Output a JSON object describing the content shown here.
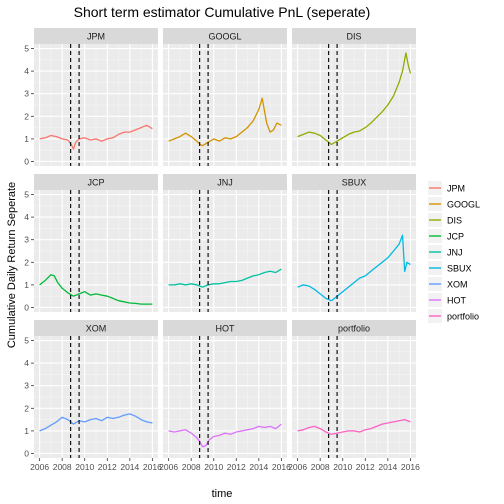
{
  "chart_data": {
    "type": "line",
    "title": "Short term estimator Cumulative PnL (seperate)",
    "xlabel": "time",
    "ylabel": "Cumulative Daily Return Seperate",
    "xlim": [
      2005.5,
      2016.5
    ],
    "ylim": [
      -0.2,
      5.2
    ],
    "x_ticks": [
      "2006",
      "2008",
      "2010",
      "2012",
      "2014",
      "2016"
    ],
    "y_ticks": [
      "0",
      "1",
      "2",
      "3",
      "4",
      "5"
    ],
    "vlines": [
      2008.75,
      2009.5
    ],
    "grid": true,
    "legend_position": "right",
    "series": [
      {
        "name": "JPM",
        "color": "#F8766D",
        "x": [
          2006,
          2006.5,
          2007,
          2007.5,
          2008,
          2008.5,
          2008.8,
          2009,
          2009.2,
          2009.5,
          2010,
          2010.5,
          2011,
          2011.5,
          2012,
          2012.5,
          2013,
          2013.5,
          2014,
          2014.5,
          2015,
          2015.5,
          2016
        ],
        "y": [
          1.0,
          1.05,
          1.15,
          1.1,
          1.0,
          0.95,
          0.75,
          0.55,
          0.85,
          1.0,
          1.05,
          0.95,
          1.0,
          0.9,
          1.0,
          1.05,
          1.2,
          1.3,
          1.3,
          1.4,
          1.5,
          1.6,
          1.45
        ]
      },
      {
        "name": "GOOGL",
        "color": "#D39200",
        "x": [
          2006,
          2006.5,
          2007,
          2007.5,
          2008,
          2008.5,
          2008.8,
          2009,
          2009.5,
          2010,
          2010.5,
          2011,
          2011.5,
          2012,
          2012.5,
          2013,
          2013.5,
          2014,
          2014.3,
          2014.7,
          2015,
          2015.3,
          2015.6,
          2016
        ],
        "y": [
          0.9,
          1.0,
          1.1,
          1.25,
          1.1,
          0.9,
          0.75,
          0.7,
          0.85,
          1.0,
          0.9,
          1.05,
          1.0,
          1.1,
          1.3,
          1.5,
          1.8,
          2.3,
          2.8,
          1.7,
          1.3,
          1.4,
          1.7,
          1.6
        ]
      },
      {
        "name": "DIS",
        "color": "#93AA00",
        "x": [
          2006,
          2006.5,
          2007,
          2007.5,
          2008,
          2008.5,
          2009,
          2009.5,
          2010,
          2010.5,
          2011,
          2011.5,
          2012,
          2012.5,
          2013,
          2013.5,
          2014,
          2014.5,
          2015,
          2015.3,
          2015.6,
          2015.8,
          2016
        ],
        "y": [
          1.1,
          1.2,
          1.3,
          1.25,
          1.15,
          0.95,
          0.75,
          0.9,
          1.05,
          1.2,
          1.3,
          1.35,
          1.5,
          1.7,
          1.95,
          2.2,
          2.5,
          2.9,
          3.5,
          4.0,
          4.8,
          4.3,
          3.9
        ]
      },
      {
        "name": "JCP",
        "color": "#00BA38",
        "x": [
          2006,
          2006.5,
          2007,
          2007.3,
          2007.6,
          2008,
          2008.5,
          2009,
          2009.5,
          2010,
          2010.5,
          2011,
          2011.5,
          2012,
          2012.5,
          2013,
          2013.5,
          2014,
          2014.5,
          2015,
          2015.5,
          2016
        ],
        "y": [
          1.0,
          1.2,
          1.45,
          1.4,
          1.1,
          0.85,
          0.65,
          0.5,
          0.6,
          0.7,
          0.55,
          0.6,
          0.55,
          0.5,
          0.4,
          0.3,
          0.25,
          0.2,
          0.18,
          0.15,
          0.15,
          0.15
        ]
      },
      {
        "name": "JNJ",
        "color": "#00C19F",
        "x": [
          2006,
          2006.5,
          2007,
          2007.5,
          2008,
          2008.5,
          2009,
          2009.5,
          2010,
          2010.5,
          2011,
          2011.5,
          2012,
          2012.5,
          2013,
          2013.5,
          2014,
          2014.5,
          2015,
          2015.5,
          2016
        ],
        "y": [
          1.0,
          1.0,
          1.05,
          1.0,
          1.05,
          1.0,
          0.9,
          1.0,
          1.05,
          1.05,
          1.1,
          1.15,
          1.15,
          1.2,
          1.3,
          1.4,
          1.45,
          1.55,
          1.6,
          1.55,
          1.7
        ]
      },
      {
        "name": "SBUX",
        "color": "#00B9E3",
        "x": [
          2006,
          2006.5,
          2007,
          2007.5,
          2008,
          2008.5,
          2009,
          2009.5,
          2010,
          2010.5,
          2011,
          2011.5,
          2012,
          2012.5,
          2013,
          2013.5,
          2014,
          2014.5,
          2015,
          2015.3,
          2015.5,
          2015.7,
          2016
        ],
        "y": [
          0.9,
          1.0,
          0.95,
          0.8,
          0.6,
          0.4,
          0.3,
          0.5,
          0.7,
          0.9,
          1.1,
          1.3,
          1.4,
          1.6,
          1.8,
          2.0,
          2.2,
          2.5,
          2.8,
          3.2,
          1.6,
          2.0,
          1.9
        ]
      },
      {
        "name": "XOM",
        "color": "#619CFF",
        "x": [
          2006,
          2006.5,
          2007,
          2007.5,
          2008,
          2008.5,
          2009,
          2009.5,
          2010,
          2010.5,
          2011,
          2011.5,
          2012,
          2012.5,
          2013,
          2013.5,
          2014,
          2014.5,
          2015,
          2015.5,
          2016
        ],
        "y": [
          1.0,
          1.1,
          1.25,
          1.4,
          1.6,
          1.5,
          1.3,
          1.45,
          1.4,
          1.5,
          1.55,
          1.45,
          1.6,
          1.55,
          1.6,
          1.7,
          1.75,
          1.65,
          1.5,
          1.4,
          1.35
        ]
      },
      {
        "name": "HOT",
        "color": "#DB72FB",
        "x": [
          2006,
          2006.5,
          2007,
          2007.5,
          2008,
          2008.5,
          2008.8,
          2009,
          2009.3,
          2009.6,
          2010,
          2010.5,
          2011,
          2011.5,
          2012,
          2012.5,
          2013,
          2013.5,
          2014,
          2014.5,
          2015,
          2015.5,
          2016
        ],
        "y": [
          1.0,
          0.95,
          1.0,
          1.05,
          0.9,
          0.7,
          0.5,
          0.3,
          0.35,
          0.6,
          0.75,
          0.8,
          0.9,
          0.85,
          0.95,
          1.0,
          1.05,
          1.1,
          1.2,
          1.15,
          1.2,
          1.1,
          1.3
        ]
      },
      {
        "name": "portfolio",
        "color": "#FF61C3",
        "x": [
          2006,
          2006.5,
          2007,
          2007.5,
          2008,
          2008.5,
          2009,
          2009.5,
          2010,
          2010.5,
          2011,
          2011.5,
          2012,
          2012.5,
          2013,
          2013.5,
          2014,
          2014.5,
          2015,
          2015.5,
          2016
        ],
        "y": [
          1.0,
          1.05,
          1.15,
          1.2,
          1.1,
          0.95,
          0.85,
          0.9,
          0.95,
          1.0,
          1.0,
          0.95,
          1.05,
          1.1,
          1.2,
          1.3,
          1.35,
          1.4,
          1.45,
          1.5,
          1.4
        ]
      }
    ]
  }
}
